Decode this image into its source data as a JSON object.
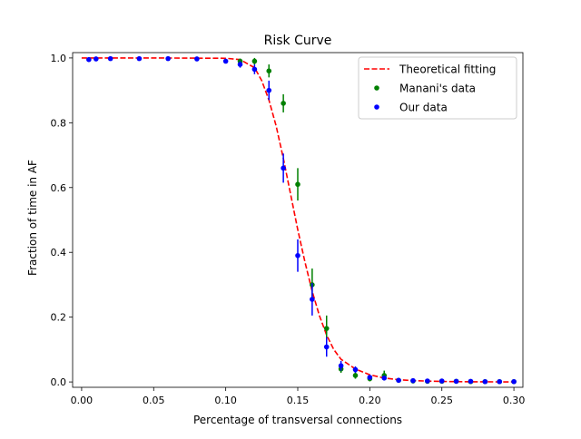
{
  "chart_data": {
    "type": "scatter",
    "title": "Risk Curve",
    "xlabel": "Percentage of transversal connections",
    "ylabel": "Fraction of time in AF",
    "xlim": [
      0.0,
      0.3
    ],
    "ylim": [
      0.0,
      1.0
    ],
    "x_ticks": [
      0.0,
      0.05,
      0.1,
      0.15,
      0.2,
      0.25,
      0.3
    ],
    "x_tick_labels": [
      "0.00",
      "0.05",
      "0.10",
      "0.15",
      "0.20",
      "0.25",
      "0.30"
    ],
    "y_ticks": [
      0.0,
      0.2,
      0.4,
      0.6,
      0.8,
      1.0
    ],
    "y_tick_labels": [
      "0.0",
      "0.2",
      "0.4",
      "0.6",
      "0.8",
      "1.0"
    ],
    "grid": false,
    "legend_position": "top-right",
    "series": [
      {
        "name": "Theoretical fitting",
        "kind": "line",
        "style": "dashed",
        "color": "#ff0000",
        "x": [
          0.0,
          0.05,
          0.1,
          0.11,
          0.12,
          0.125,
          0.13,
          0.135,
          0.14,
          0.145,
          0.15,
          0.155,
          0.16,
          0.165,
          0.17,
          0.175,
          0.18,
          0.19,
          0.2,
          0.21,
          0.22,
          0.23,
          0.25,
          0.27,
          0.3
        ],
        "y": [
          1.0,
          1.0,
          0.999,
          0.995,
          0.97,
          0.93,
          0.87,
          0.79,
          0.69,
          0.58,
          0.47,
          0.37,
          0.28,
          0.205,
          0.145,
          0.1,
          0.07,
          0.04,
          0.022,
          0.012,
          0.007,
          0.004,
          0.0015,
          0.0005,
          0.0001
        ]
      },
      {
        "name": "Manani's data",
        "kind": "errorbar",
        "color": "#008000",
        "x": [
          0.11,
          0.12,
          0.13,
          0.14,
          0.15,
          0.16,
          0.17,
          0.18,
          0.19,
          0.2,
          0.21,
          0.22,
          0.23,
          0.24,
          0.25,
          0.26,
          0.27,
          0.28,
          0.29,
          0.3
        ],
        "y": [
          0.99,
          0.99,
          0.96,
          0.86,
          0.61,
          0.3,
          0.165,
          0.04,
          0.02,
          0.01,
          0.02,
          0.005,
          0.003,
          0.002,
          0.002,
          0.002,
          0.001,
          0.001,
          0.001,
          0.001
        ],
        "err": [
          0.008,
          0.01,
          0.02,
          0.028,
          0.05,
          0.05,
          0.04,
          0.012,
          0.01,
          0.008,
          0.015,
          0.004,
          0.003,
          0.002,
          0.002,
          0.002,
          0.001,
          0.001,
          0.001,
          0.001
        ]
      },
      {
        "name": "Our data",
        "kind": "errorbar",
        "color": "#0000ff",
        "x": [
          0.005,
          0.01,
          0.02,
          0.04,
          0.06,
          0.08,
          0.1,
          0.11,
          0.12,
          0.13,
          0.14,
          0.15,
          0.16,
          0.17,
          0.18,
          0.19,
          0.2,
          0.21,
          0.22,
          0.23,
          0.24,
          0.25,
          0.26,
          0.27,
          0.28,
          0.29,
          0.3
        ],
        "y": [
          0.995,
          0.997,
          0.998,
          0.998,
          0.998,
          0.997,
          0.99,
          0.98,
          0.965,
          0.9,
          0.66,
          0.39,
          0.255,
          0.108,
          0.05,
          0.038,
          0.014,
          0.012,
          0.005,
          0.004,
          0.003,
          0.003,
          0.002,
          0.002,
          0.001,
          0.001,
          0.001
        ],
        "err": [
          0.003,
          0.002,
          0.002,
          0.002,
          0.002,
          0.002,
          0.005,
          0.01,
          0.015,
          0.03,
          0.045,
          0.05,
          0.05,
          0.03,
          0.015,
          0.01,
          0.006,
          0.005,
          0.003,
          0.003,
          0.002,
          0.002,
          0.002,
          0.002,
          0.001,
          0.001,
          0.001
        ]
      }
    ]
  }
}
